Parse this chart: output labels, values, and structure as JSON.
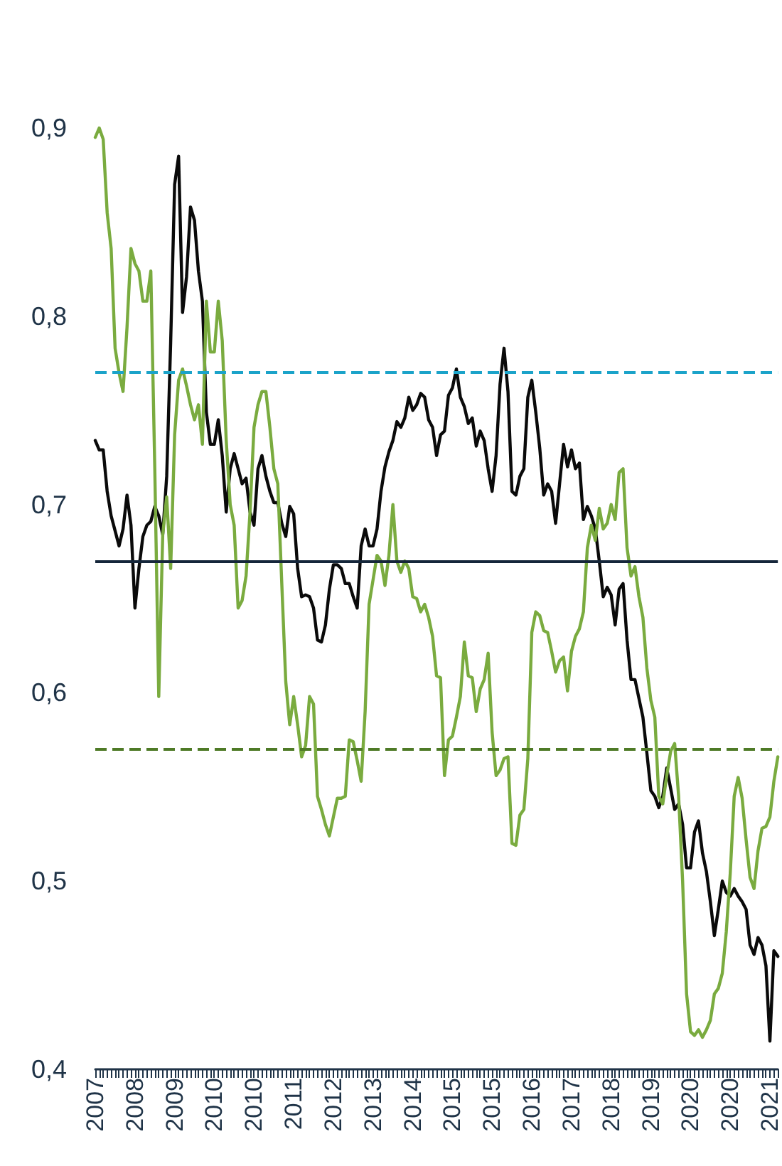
{
  "chart_data": {
    "type": "line",
    "categories": [
      "2007",
      null,
      null,
      null,
      null,
      null,
      null,
      null,
      null,
      null,
      "2008",
      null,
      null,
      null,
      null,
      null,
      null,
      null,
      null,
      null,
      "2009",
      null,
      null,
      null,
      null,
      null,
      null,
      null,
      null,
      null,
      "2010",
      null,
      null,
      null,
      null,
      null,
      null,
      null,
      null,
      null,
      "2010",
      null,
      null,
      null,
      null,
      null,
      null,
      null,
      null,
      null,
      "2011",
      null,
      null,
      null,
      null,
      null,
      null,
      null,
      null,
      null,
      "2012",
      null,
      null,
      null,
      null,
      null,
      null,
      null,
      null,
      null,
      "2013",
      null,
      null,
      null,
      null,
      null,
      null,
      null,
      null,
      null,
      "2014",
      null,
      null,
      null,
      null,
      null,
      null,
      null,
      null,
      null,
      "2015",
      null,
      null,
      null,
      null,
      null,
      null,
      null,
      null,
      null,
      "2015",
      null,
      null,
      null,
      null,
      null,
      null,
      null,
      null,
      null,
      "2016",
      null,
      null,
      null,
      null,
      null,
      null,
      null,
      null,
      null,
      "2017",
      null,
      null,
      null,
      null,
      null,
      null,
      null,
      null,
      null,
      "2018",
      null,
      null,
      null,
      null,
      null,
      null,
      null,
      null,
      null,
      "2019",
      null,
      null,
      null,
      null,
      null,
      null,
      null,
      null,
      null,
      "2020",
      null,
      null,
      null,
      null,
      null,
      null,
      null,
      null,
      null,
      "2020",
      null,
      null,
      null,
      null,
      null,
      null,
      null,
      null,
      null,
      "2021",
      null,
      null
    ],
    "series": [
      {
        "color": "#0a0a0a",
        "values": [
          0.734,
          0.729,
          0.729,
          0.707,
          0.694,
          0.686,
          0.678,
          0.687,
          0.705,
          0.689,
          0.645,
          0.666,
          0.683,
          0.689,
          0.691,
          0.699,
          0.694,
          0.684,
          0.715,
          0.786,
          0.87,
          0.885,
          0.802,
          0.821,
          0.858,
          0.851,
          0.824,
          0.808,
          0.749,
          0.732,
          0.732,
          0.745,
          0.726,
          0.696,
          0.719,
          0.727,
          0.719,
          0.711,
          0.714,
          0.696,
          0.689,
          0.719,
          0.726,
          0.715,
          0.707,
          0.701,
          0.701,
          0.69,
          0.683,
          0.699,
          0.695,
          0.666,
          0.651,
          0.652,
          0.651,
          0.645,
          0.628,
          0.627,
          0.636,
          0.655,
          0.668,
          0.668,
          0.666,
          0.658,
          0.658,
          0.651,
          0.645,
          0.678,
          0.687,
          0.678,
          0.678,
          0.687,
          0.707,
          0.72,
          0.728,
          0.734,
          0.744,
          0.741,
          0.746,
          0.757,
          0.75,
          0.753,
          0.759,
          0.757,
          0.745,
          0.741,
          0.726,
          0.737,
          0.739,
          0.758,
          0.762,
          0.772,
          0.757,
          0.752,
          0.743,
          0.746,
          0.731,
          0.739,
          0.734,
          0.719,
          0.707,
          0.726,
          0.764,
          0.783,
          0.76,
          0.707,
          0.705,
          0.715,
          0.719,
          0.757,
          0.766,
          0.749,
          0.73,
          0.705,
          0.711,
          0.707,
          0.69,
          0.711,
          0.732,
          0.72,
          0.729,
          0.719,
          0.722,
          0.692,
          0.699,
          0.694,
          0.687,
          0.67,
          0.651,
          0.656,
          0.652,
          0.636,
          0.655,
          0.658,
          0.628,
          0.607,
          0.607,
          0.597,
          0.587,
          0.568,
          0.548,
          0.545,
          0.539,
          0.545,
          0.56,
          0.549,
          0.538,
          0.541,
          0.53,
          0.507,
          0.507,
          0.526,
          0.532,
          0.515,
          0.505,
          0.489,
          0.471,
          0.485,
          0.5,
          0.494,
          0.492,
          0.496,
          0.492,
          0.489,
          0.485,
          0.466,
          0.461,
          0.47,
          0.466,
          0.455,
          0.415,
          0.463,
          0.46
        ]
      },
      {
        "color": "#7aab3f",
        "values": [
          0.895,
          0.9,
          0.894,
          0.855,
          0.836,
          0.783,
          0.77,
          0.76,
          0.794,
          0.836,
          0.828,
          0.824,
          0.808,
          0.808,
          0.824,
          0.719,
          0.598,
          0.684,
          0.704,
          0.666,
          0.737,
          0.766,
          0.772,
          0.763,
          0.753,
          0.745,
          0.753,
          0.732,
          0.808,
          0.781,
          0.781,
          0.808,
          0.787,
          0.734,
          0.7,
          0.689,
          0.645,
          0.649,
          0.662,
          0.696,
          0.741,
          0.753,
          0.76,
          0.76,
          0.741,
          0.719,
          0.711,
          0.658,
          0.606,
          0.583,
          0.598,
          0.583,
          0.566,
          0.572,
          0.598,
          0.594,
          0.545,
          0.538,
          0.53,
          0.524,
          0.534,
          0.544,
          0.544,
          0.545,
          0.575,
          0.574,
          0.564,
          0.553,
          0.59,
          0.647,
          0.66,
          0.673,
          0.67,
          0.657,
          0.673,
          0.7,
          0.67,
          0.664,
          0.67,
          0.666,
          0.651,
          0.65,
          0.643,
          0.647,
          0.64,
          0.63,
          0.609,
          0.608,
          0.556,
          0.575,
          0.577,
          0.587,
          0.598,
          0.627,
          0.609,
          0.608,
          0.59,
          0.602,
          0.607,
          0.621,
          0.579,
          0.556,
          0.559,
          0.565,
          0.566,
          0.52,
          0.519,
          0.535,
          0.538,
          0.565,
          0.632,
          0.643,
          0.641,
          0.633,
          0.632,
          0.622,
          0.611,
          0.617,
          0.619,
          0.601,
          0.622,
          0.63,
          0.634,
          0.643,
          0.677,
          0.689,
          0.681,
          0.698,
          0.687,
          0.69,
          0.7,
          0.692,
          0.717,
          0.719,
          0.677,
          0.662,
          0.667,
          0.651,
          0.64,
          0.613,
          0.596,
          0.587,
          0.545,
          0.541,
          0.556,
          0.569,
          0.573,
          0.545,
          0.5,
          0.44,
          0.42,
          0.418,
          0.421,
          0.417,
          0.421,
          0.426,
          0.44,
          0.443,
          0.451,
          0.473,
          0.504,
          0.545,
          0.555,
          0.544,
          0.522,
          0.502,
          0.496,
          0.516,
          0.528,
          0.529,
          0.534,
          0.553,
          0.566
        ]
      }
    ],
    "ylim": [
      0.4,
      0.9
    ],
    "yticks": [
      {
        "value": 0.4,
        "label": "0,4"
      },
      {
        "value": 0.5,
        "label": "0,5"
      },
      {
        "value": 0.6,
        "label": "0,6"
      },
      {
        "value": 0.7,
        "label": "0,7"
      },
      {
        "value": 0.8,
        "label": "0,8"
      },
      {
        "value": 0.9,
        "label": "0,9"
      }
    ],
    "ref_lines": [
      {
        "axis": "y",
        "value": 0.766,
        "color": "#1ba3c9",
        "line_style": "dashed"
      },
      {
        "axis": "y",
        "value": 0.669,
        "color": "#15263a",
        "line_style": "solid"
      },
      {
        "axis": "y",
        "value": 0.573,
        "color": "#4e7a26",
        "line_style": "dashed"
      }
    ],
    "marker": "none",
    "line_style": "solid"
  }
}
